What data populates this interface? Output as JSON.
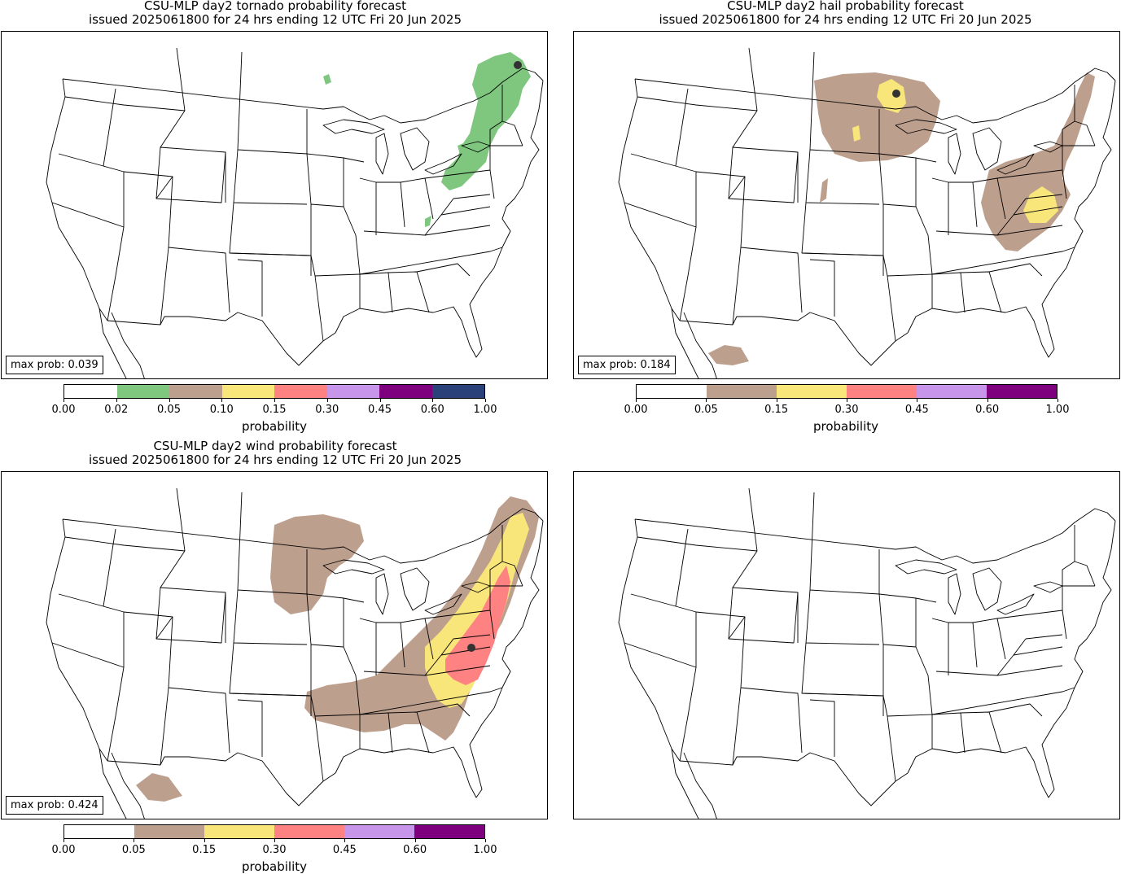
{
  "colors": {
    "none": "#ffffff",
    "p02": "#7fc67f",
    "p05": "#bd9f8e",
    "p10": "#f9e67b",
    "p15": "#fe8282",
    "p30": "#c795ea",
    "p45": "#7f007f",
    "p60": "#2a4179"
  },
  "panels": [
    {
      "id": "tornado",
      "title_line1": "CSU-MLP day2 tornado probability forecast",
      "title_line2": "issued 2025061800 for 24 hrs ending 12 UTC Fri 20 Jun 2025",
      "max_prob": "max prob: 0.039",
      "colorbar_label": "probability",
      "levels": [
        "0.00",
        "0.02",
        "0.05",
        "0.10",
        "0.15",
        "0.30",
        "0.45",
        "0.60",
        "1.00"
      ],
      "level_colors": [
        "none",
        "p02",
        "p05",
        "p10",
        "p15",
        "p30",
        "p45",
        "p60"
      ]
    },
    {
      "id": "hail",
      "title_line1": "CSU-MLP day2 hail probability forecast",
      "title_line2": "issued 2025061800 for 24 hrs ending 12 UTC Fri 20 Jun 2025",
      "max_prob": "max prob: 0.184",
      "colorbar_label": "probability",
      "levels": [
        "0.00",
        "0.05",
        "0.15",
        "0.30",
        "0.45",
        "0.60",
        "1.00"
      ],
      "level_colors": [
        "none",
        "p05",
        "p10",
        "p15",
        "p30",
        "p45"
      ]
    },
    {
      "id": "wind",
      "title_line1": "CSU-MLP day2 wind probability forecast",
      "title_line2": "issued 2025061800 for 24 hrs ending 12 UTC Fri 20 Jun 2025",
      "max_prob": "max prob: 0.424",
      "colorbar_label": "probability",
      "levels": [
        "0.00",
        "0.05",
        "0.15",
        "0.30",
        "0.45",
        "0.60",
        "1.00"
      ],
      "level_colors": [
        "none",
        "p05",
        "p10",
        "p15",
        "p30",
        "p45"
      ]
    },
    {
      "id": "blank"
    }
  ]
}
